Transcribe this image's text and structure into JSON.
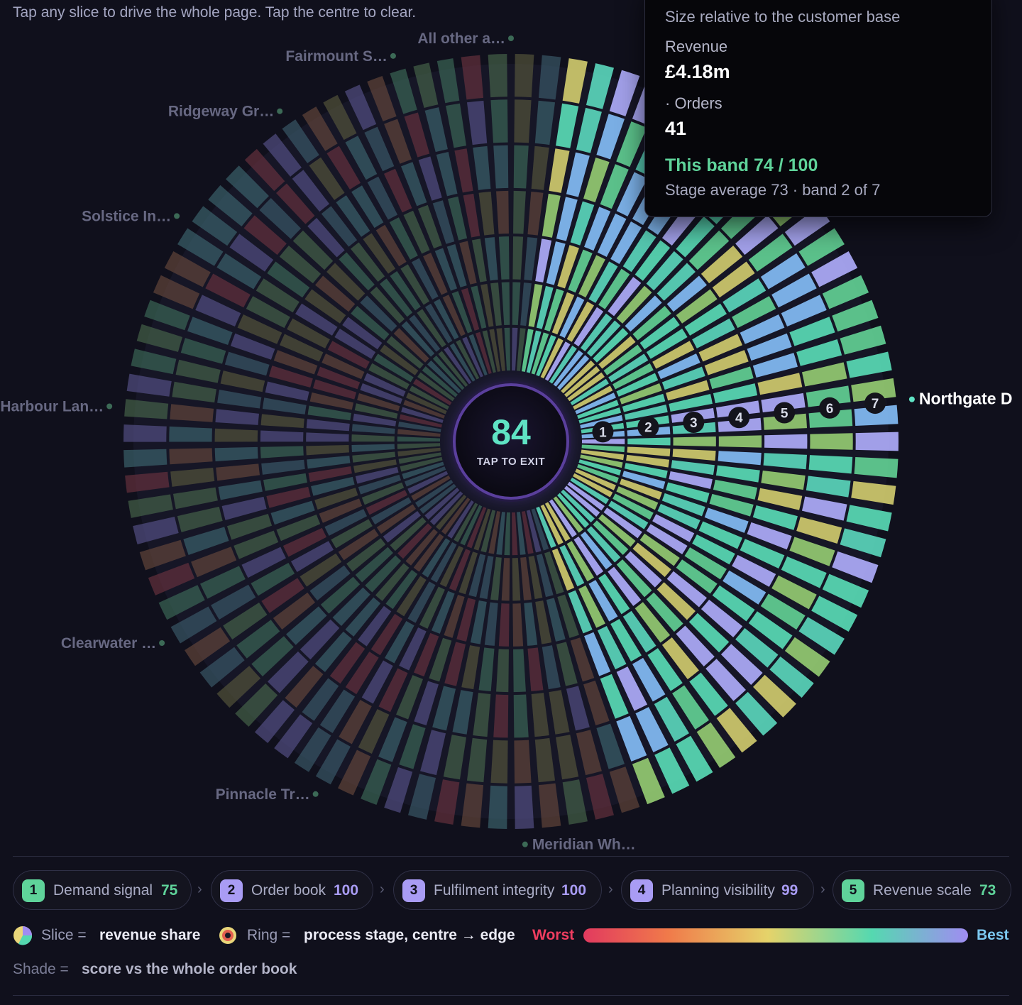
{
  "hint": "Tap any slice to drive the whole page. Tap the centre to clear.",
  "hub": {
    "score": "84",
    "caption": "TAP TO EXIT"
  },
  "tooltip": {
    "subtitle": "Size relative to the customer base",
    "metric1_label": "Revenue",
    "metric1_value": "£4.18m",
    "metric2_label": "· Orders",
    "metric2_value": "41",
    "band": "This band 74 / 100",
    "average": "Stage average 73 · band 2 of 7"
  },
  "chart_data": {
    "type": "sunburst",
    "selected_slice": "Northgate D",
    "slices": [
      {
        "label": "Northgate D",
        "active": true
      },
      {
        "label": "Meridian Wh…"
      },
      {
        "label": "Pinnacle Tr…"
      },
      {
        "label": "Clearwater …"
      },
      {
        "label": "Harbour Lan…"
      },
      {
        "label": "Solstice In…"
      },
      {
        "label": "Ridgeway Gr…"
      },
      {
        "label": "Fairmount S…"
      },
      {
        "label": "All other a…"
      }
    ],
    "ring_markers": [
      "1",
      "2",
      "3",
      "4",
      "5",
      "6",
      "7"
    ],
    "colors": {
      "worst": "#e23a5f",
      "mid": "#e5d36a",
      "good": "#55d8b0",
      "best": "#a08cf2"
    }
  },
  "stages": [
    {
      "num": "1",
      "label": "Demand signal",
      "score": "75",
      "color": "#5fd39a"
    },
    {
      "num": "2",
      "label": "Order book",
      "score": "100",
      "color": "#a99cf4"
    },
    {
      "num": "3",
      "label": "Fulfilment integrity",
      "score": "100",
      "color": "#a99cf4"
    },
    {
      "num": "4",
      "label": "Planning visibility",
      "score": "99",
      "color": "#a99cf4"
    },
    {
      "num": "5",
      "label": "Revenue scale",
      "score": "73",
      "color": "#5fd39a"
    }
  ],
  "legend": {
    "slice_key": "Slice =",
    "slice_value": "revenue share",
    "ring_key": "Ring =",
    "ring_value": "process stage, centre → edge",
    "worst": "Worst",
    "best": "Best",
    "shade_key": "Shade =",
    "shade_value": "score vs the whole order book"
  }
}
